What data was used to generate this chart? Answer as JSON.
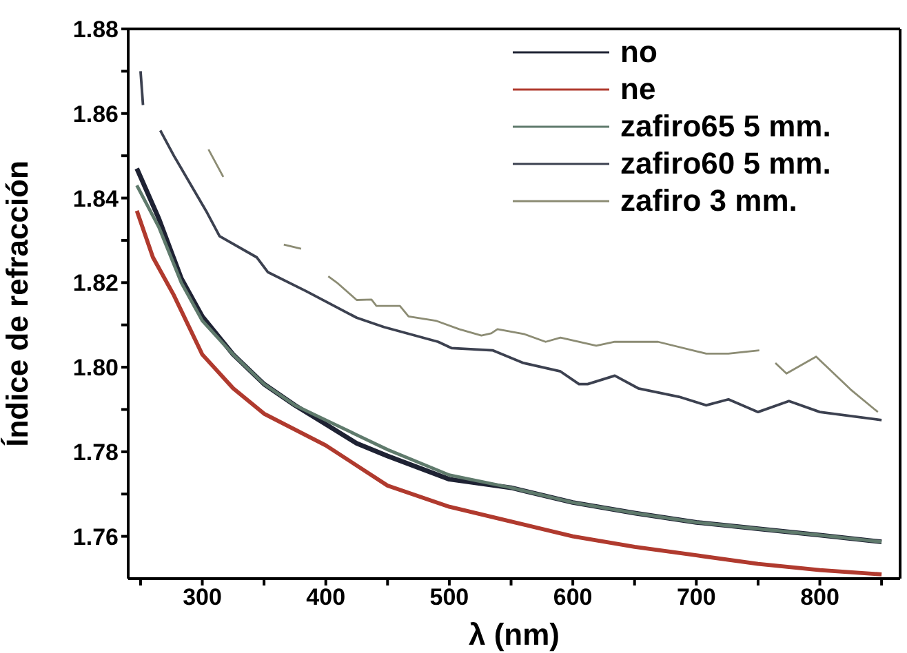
{
  "chart_data": {
    "type": "line",
    "xlabel": "λ (nm)",
    "ylabel": "Índice de refracción",
    "xlim": [
      240,
      865
    ],
    "ylim": [
      1.75,
      1.88
    ],
    "xticks": [
      {
        "value": 250,
        "label": null
      },
      300,
      {
        "value": 350,
        "label": null
      },
      400,
      {
        "value": 450,
        "label": null
      },
      500,
      {
        "value": 550,
        "label": null
      },
      600,
      {
        "value": 650,
        "label": null
      },
      700,
      {
        "value": 750,
        "label": null
      },
      800,
      {
        "value": 850,
        "label": null
      }
    ],
    "yticks": [
      1.76,
      {
        "value": 1.77,
        "label": null
      },
      1.78,
      {
        "value": 1.79,
        "label": null
      },
      {
        "value": 1.8,
        "label": "1.80"
      },
      {
        "value": 1.81,
        "label": null
      },
      1.82,
      {
        "value": 1.83,
        "label": null
      },
      1.84,
      {
        "value": 1.85,
        "label": null
      },
      1.86,
      {
        "value": 1.87,
        "label": null
      },
      1.88
    ],
    "grid": false,
    "legend": "top right",
    "marker": "none",
    "line_style": "solid",
    "series": [
      {
        "name": "no",
        "color": "#1e2233",
        "x": [
          247,
          265,
          283,
          300,
          325,
          350,
          375,
          400,
          425,
          450,
          500,
          550,
          600,
          650,
          700,
          750,
          800,
          850
        ],
        "values": [
          1.847,
          1.835,
          1.821,
          1.812,
          1.803,
          1.796,
          1.791,
          1.7865,
          1.782,
          1.779,
          1.7735,
          1.7715,
          1.768,
          1.7655,
          1.7633,
          1.7618,
          1.7603,
          1.7587
        ]
      },
      {
        "name": "ne",
        "color": "#b03a2e",
        "x": [
          247,
          260,
          277,
          300,
          325,
          350,
          400,
          450,
          500,
          550,
          600,
          650,
          700,
          750,
          800,
          850
        ],
        "values": [
          1.837,
          1.826,
          1.817,
          1.803,
          1.795,
          1.789,
          1.7815,
          1.772,
          1.767,
          1.7635,
          1.76,
          1.7575,
          1.7555,
          1.7535,
          1.752,
          1.751
        ]
      },
      {
        "name": "zafiro65 5 mm.",
        "color": "#5f7a6c",
        "x": [
          247,
          265,
          283,
          300,
          325,
          350,
          375,
          400,
          425,
          450,
          500,
          550,
          600,
          650,
          700,
          750,
          800,
          850
        ],
        "values": [
          1.843,
          1.833,
          1.82,
          1.811,
          1.803,
          1.796,
          1.791,
          1.7875,
          1.784,
          1.7805,
          1.7745,
          1.7715,
          1.768,
          1.7655,
          1.7633,
          1.7618,
          1.7603,
          1.7587
        ]
      },
      {
        "name": "zafiro60 5 mm.",
        "color": "#3c4150",
        "x": [
          250,
          252,
          258,
          266,
          277,
          283,
          303,
          314,
          344,
          353,
          384,
          425,
          447,
          491,
          502,
          535,
          560,
          590,
          605,
          612,
          634,
          653,
          686,
          708,
          726,
          750,
          775,
          800,
          850
        ],
        "values": [
          1.87,
          1.862,
          null,
          1.856,
          1.85,
          1.847,
          1.837,
          1.831,
          1.826,
          1.8225,
          1.818,
          1.8117,
          1.8095,
          1.806,
          1.8045,
          1.804,
          1.801,
          1.799,
          1.796,
          1.796,
          1.798,
          1.795,
          1.793,
          1.791,
          1.7924,
          1.7894,
          1.792,
          1.7894,
          1.7875
        ]
      },
      {
        "name": "zafiro 3 mm.",
        "color": "#8c8c74",
        "x": [
          305,
          317,
          340,
          366,
          380,
          392,
          402,
          409,
          425,
          437,
          441,
          460,
          467,
          489,
          508,
          526,
          534,
          539,
          561,
          578,
          590,
          619,
          634,
          669,
          708,
          726,
          751,
          758,
          764,
          773,
          797,
          825,
          847
        ],
        "values": [
          1.8515,
          1.845,
          null,
          1.829,
          1.828,
          null,
          1.8215,
          1.82,
          1.8159,
          1.816,
          1.8145,
          1.8145,
          1.812,
          1.811,
          1.809,
          1.8075,
          1.808,
          1.809,
          1.8078,
          1.806,
          1.807,
          1.8051,
          1.806,
          1.806,
          1.8032,
          1.8032,
          1.804,
          null,
          1.801,
          1.7985,
          1.8025,
          1.7947,
          1.7894
        ]
      }
    ]
  }
}
